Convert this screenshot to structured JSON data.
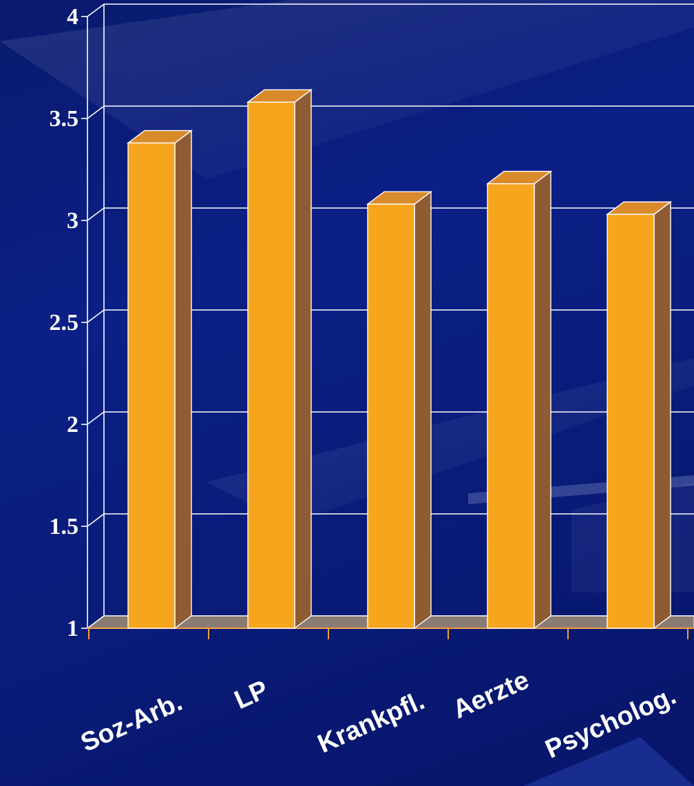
{
  "chart_data": {
    "type": "bar",
    "categories": [
      "Soz-Arb.",
      "LP",
      "Krankpfl.",
      "Aerzte",
      "Psycholog."
    ],
    "values": [
      3.38,
      3.58,
      3.08,
      3.18,
      3.03
    ],
    "yticks": [
      "1",
      "1.5",
      "2",
      "2.5",
      "3",
      "3.5",
      "4"
    ],
    "ylim": [
      1,
      4
    ],
    "grid": true,
    "style": "3d-column"
  },
  "colors": {
    "bar_front": "#f8a51e",
    "bar_top": "#d98a2a",
    "bar_side": "#8e5c33",
    "floor": "#8a7c74",
    "grid": "#ffffff",
    "tick": "#f2a03a",
    "text": "#ffffff"
  }
}
